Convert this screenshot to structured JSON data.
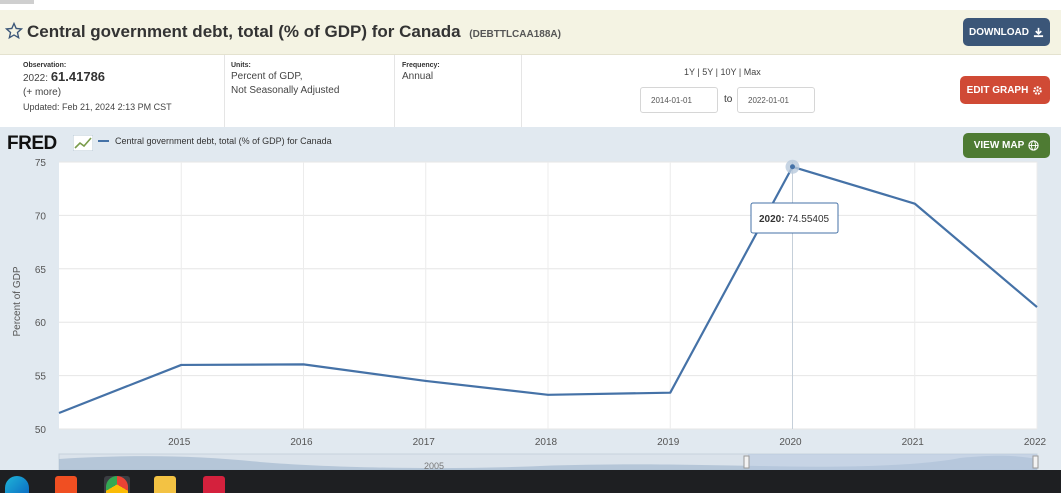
{
  "header": {
    "title": "Central government debt, total (% of GDP) for Canada",
    "series_id": "(DEBTTLCAA188A)",
    "download_label": "DOWNLOAD"
  },
  "meta": {
    "observation_label": "Observation:",
    "observation_period": "2022:",
    "observation_value": "61.41786",
    "more_link": "(+ more)",
    "updated": "Updated: Feb 21, 2024 2:13 PM CST",
    "units_label": "Units:",
    "units_line1": "Percent of GDP,",
    "units_line2": "Not Seasonally Adjusted",
    "frequency_label": "Frequency:",
    "frequency_value": "Annual"
  },
  "controls": {
    "range_1y": "1Y",
    "range_5y": "5Y",
    "range_10y": "10Y",
    "range_max": "Max",
    "separator": "|",
    "start_date": "2014-01-01",
    "to_label": "to",
    "end_date": "2022-01-01",
    "edit_label": "EDIT GRAPH",
    "view_map_label": "VIEW MAP"
  },
  "logo": {
    "text": "FRED"
  },
  "colors": {
    "series": "#4572a7",
    "download": "#3b5678",
    "edit": "#d04a35",
    "view_map": "#4e7b33"
  },
  "icons": [
    "star-icon",
    "download-icon",
    "gear-icon",
    "globe-icon",
    "edge-icon",
    "brave-icon",
    "chrome-icon",
    "folder-icon",
    "x-app-icon"
  ],
  "chart_data": {
    "type": "line",
    "legend": "Central government debt, total (% of GDP) for Canada",
    "ylabel": "Percent of GDP",
    "xlabel": "",
    "ylim": [
      50,
      75
    ],
    "yticks": [
      50,
      55,
      60,
      65,
      70,
      75
    ],
    "xticks": [
      2015,
      2016,
      2017,
      2018,
      2019,
      2020,
      2021,
      2022
    ],
    "xlim": [
      2014,
      2022
    ],
    "grid": true,
    "series": [
      {
        "x": [
          2014,
          2015,
          2016,
          2017,
          2018,
          2019,
          2020,
          2021,
          2022
        ],
        "values": [
          51.5,
          56.0,
          56.05,
          54.5,
          53.2,
          53.4,
          74.55405,
          71.1,
          61.41786
        ]
      }
    ],
    "tooltip": {
      "label": "2020:",
      "value": "74.55405",
      "x": 2020
    },
    "navigator_labels": [
      "2005"
    ]
  }
}
